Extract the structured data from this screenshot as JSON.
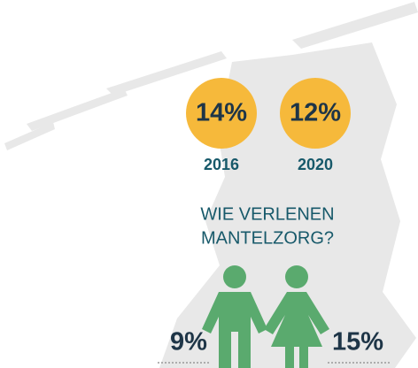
{
  "stats": [
    {
      "value": "14%",
      "year": "2016"
    },
    {
      "value": "12%",
      "year": "2020"
    }
  ],
  "question": [
    "WIE VERLENEN",
    "MANTELZORG?"
  ],
  "men": "9%",
  "women": "15%"
}
